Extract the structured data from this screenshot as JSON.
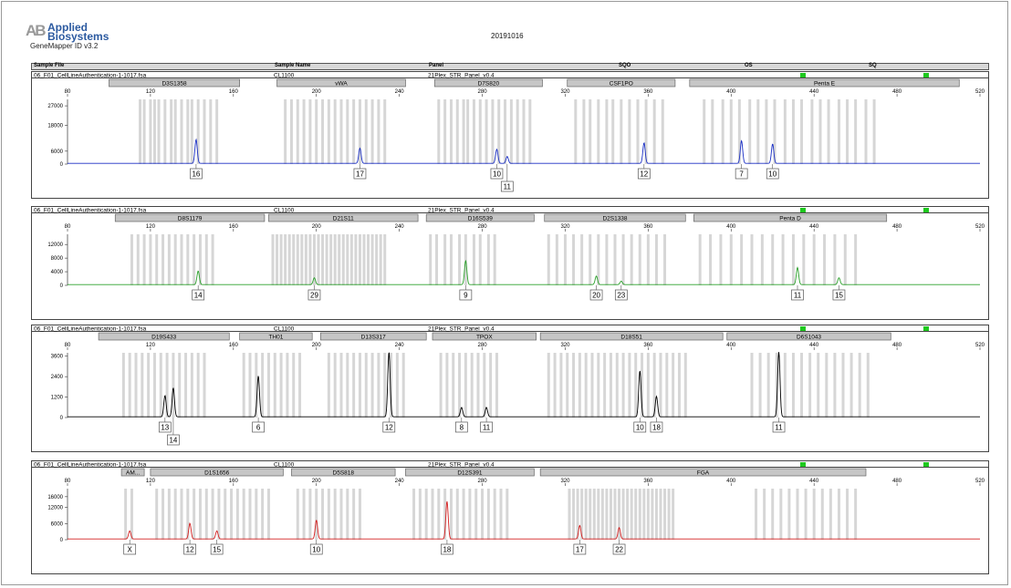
{
  "header": {
    "logo_mark": "AB",
    "brand_line1": "Applied",
    "brand_line2": "Biosystems",
    "software": "GeneMapper ID v3.2",
    "date": "20191016",
    "columns": [
      "Sample File",
      "Sample Name",
      "Panel",
      "SQO",
      "OS",
      "SQ"
    ]
  },
  "colors": {
    "blue": "#1a2fc4",
    "green": "#2aa02a",
    "black": "#000000",
    "red": "#d42020",
    "flag": "#1ec81e"
  },
  "chart_data": [
    {
      "type": "line",
      "title": "06_F01_CellLineAuthentication-1-1017.fsa",
      "sample_name": "CL1100",
      "panel": "21Plex_STR_Panel_v0.4",
      "dye_color": "#1a2fc4",
      "xlim": [
        80,
        520
      ],
      "xticks": [
        80,
        120,
        160,
        200,
        240,
        280,
        320,
        360,
        400,
        440,
        480,
        520
      ],
      "ylim": [
        0,
        30000
      ],
      "yticks": [
        0,
        6000,
        18000,
        27000
      ],
      "markers": [
        {
          "name": "D3S1358",
          "start": 100,
          "end": 163
        },
        {
          "name": "vWA",
          "start": 181,
          "end": 243
        },
        {
          "name": "D7S820",
          "start": 257,
          "end": 309
        },
        {
          "name": "CSF1PO",
          "start": 321,
          "end": 373
        },
        {
          "name": "Penta E",
          "start": 380,
          "end": 510
        }
      ],
      "peaks": [
        {
          "x": 142,
          "h": 11000,
          "label": "16"
        },
        {
          "x": 221,
          "h": 7000,
          "label": "17"
        },
        {
          "x": 287,
          "h": 6500,
          "label": "10"
        },
        {
          "x": 292,
          "h": 3200,
          "label": "11"
        },
        {
          "x": 358,
          "h": 9500,
          "label": "12"
        },
        {
          "x": 405,
          "h": 10500,
          "label": "7"
        },
        {
          "x": 420,
          "h": 9000,
          "label": "10"
        }
      ],
      "alleles": [
        {
          "x": 142,
          "label": "16"
        },
        {
          "x": 221,
          "label": "17"
        },
        {
          "x": 287,
          "label": "10"
        },
        {
          "x": 292,
          "label": "11"
        },
        {
          "x": 358,
          "label": "12"
        },
        {
          "x": 405,
          "label": "7"
        },
        {
          "x": 420,
          "label": "10"
        }
      ],
      "bins": [
        115,
        117,
        120,
        122,
        124,
        127,
        130,
        132,
        135,
        138,
        140,
        143,
        146,
        149,
        152,
        185,
        188,
        191,
        194,
        197,
        200,
        203,
        206,
        209,
        212,
        215,
        218,
        221,
        224,
        227,
        230,
        233,
        259,
        262,
        265,
        268,
        271,
        273,
        276,
        279,
        282,
        285,
        288,
        291,
        294,
        297,
        300,
        303,
        325,
        329,
        332,
        336,
        340,
        343,
        347,
        351,
        355,
        359,
        363,
        367,
        387,
        391,
        396,
        400,
        404,
        409,
        413,
        417,
        421,
        426,
        430,
        434,
        439,
        443,
        447,
        452,
        456,
        460,
        465,
        469
      ]
    },
    {
      "type": "line",
      "title": "06_F01_CellLineAuthentication-1-1017.fsa",
      "sample_name": "CL1100",
      "panel": "21Plex_STR_Panel_v0.4",
      "dye_color": "#2aa02a",
      "xlim": [
        80,
        520
      ],
      "xticks": [
        80,
        120,
        160,
        200,
        240,
        280,
        320,
        360,
        400,
        440,
        480,
        520
      ],
      "ylim": [
        0,
        15000
      ],
      "yticks": [
        0,
        4000,
        8000,
        12000
      ],
      "markers": [
        {
          "name": "D8S1179",
          "start": 103,
          "end": 175
        },
        {
          "name": "D21S11",
          "start": 177,
          "end": 249
        },
        {
          "name": "D16S539",
          "start": 253,
          "end": 305
        },
        {
          "name": "D2S1338",
          "start": 310,
          "end": 378
        },
        {
          "name": "Penta D",
          "start": 382,
          "end": 475
        }
      ],
      "peaks": [
        {
          "x": 143,
          "h": 4000,
          "label": "14"
        },
        {
          "x": 199,
          "h": 2000,
          "label": "29"
        },
        {
          "x": 272,
          "h": 7000,
          "label": "9"
        },
        {
          "x": 335,
          "h": 2500,
          "label": "20"
        },
        {
          "x": 347,
          "h": 1000,
          "label": "23"
        },
        {
          "x": 432,
          "h": 5000,
          "label": "11"
        },
        {
          "x": 452,
          "h": 2000,
          "label": "15"
        }
      ],
      "alleles": [
        {
          "x": 143,
          "label": "14"
        },
        {
          "x": 199,
          "label": "29"
        },
        {
          "x": 272,
          "label": "9"
        },
        {
          "x": 335,
          "label": "20"
        },
        {
          "x": 347,
          "label": "23"
        },
        {
          "x": 432,
          "label": "11"
        },
        {
          "x": 452,
          "label": "15"
        }
      ],
      "bins": [
        111,
        114,
        117,
        120,
        123,
        126,
        129,
        132,
        135,
        138,
        141,
        144,
        147,
        150,
        179,
        181,
        183,
        185,
        187,
        189,
        191,
        193,
        195,
        197,
        199,
        201,
        203,
        205,
        207,
        209,
        211,
        213,
        215,
        217,
        219,
        221,
        223,
        225,
        227,
        229,
        231,
        233,
        255,
        258,
        262,
        265,
        269,
        272,
        276,
        279,
        283,
        286,
        312,
        316,
        320,
        324,
        328,
        332,
        336,
        340,
        344,
        348,
        352,
        356,
        360,
        364,
        368,
        385,
        390,
        395,
        400,
        405,
        410,
        415,
        420,
        425,
        430,
        435,
        440,
        445,
        450,
        455,
        460
      ]
    },
    {
      "type": "line",
      "title": "06_F01_CellLineAuthentication-1-1017.fsa",
      "sample_name": "CL1100",
      "panel": "21Plex_STR_Panel_v0.4",
      "dye_color": "#000000",
      "xlim": [
        80,
        520
      ],
      "xticks": [
        80,
        120,
        160,
        200,
        240,
        280,
        320,
        360,
        400,
        440,
        480,
        520
      ],
      "ylim": [
        0,
        3800
      ],
      "yticks": [
        0,
        1200,
        2400,
        3600
      ],
      "markers": [
        {
          "name": "D19S433",
          "start": 95,
          "end": 158
        },
        {
          "name": "TH01",
          "start": 163,
          "end": 198
        },
        {
          "name": "D13S317",
          "start": 202,
          "end": 253
        },
        {
          "name": "TPOX",
          "start": 256,
          "end": 306
        },
        {
          "name": "D18S51",
          "start": 308,
          "end": 396
        },
        {
          "name": "D6S1043",
          "start": 398,
          "end": 477
        }
      ],
      "peaks": [
        {
          "x": 127,
          "h": 1250,
          "label": "13"
        },
        {
          "x": 131,
          "h": 1700,
          "label": "14"
        },
        {
          "x": 172,
          "h": 2400,
          "label": "6"
        },
        {
          "x": 235,
          "h": 3800,
          "label": "12"
        },
        {
          "x": 270,
          "h": 550,
          "label": "8"
        },
        {
          "x": 282,
          "h": 550,
          "label": "11"
        },
        {
          "x": 356,
          "h": 2700,
          "label": "10"
        },
        {
          "x": 364,
          "h": 1200,
          "label": "18"
        },
        {
          "x": 423,
          "h": 3800,
          "label": "11"
        }
      ],
      "alleles": [
        {
          "x": 127,
          "label": "13"
        },
        {
          "x": 131,
          "label": "14"
        },
        {
          "x": 172,
          "label": "6"
        },
        {
          "x": 235,
          "label": "12"
        },
        {
          "x": 270,
          "label": "8"
        },
        {
          "x": 282,
          "label": "11"
        },
        {
          "x": 356,
          "label": "10"
        },
        {
          "x": 364,
          "label": "18"
        },
        {
          "x": 423,
          "label": "11"
        }
      ],
      "bins": [
        107,
        110,
        113,
        116,
        119,
        122,
        125,
        128,
        131,
        134,
        137,
        140,
        143,
        146,
        165,
        168,
        171,
        174,
        177,
        180,
        183,
        186,
        189,
        192,
        206,
        209,
        212,
        215,
        218,
        221,
        224,
        227,
        230,
        233,
        236,
        239,
        242,
        260,
        263,
        266,
        269,
        272,
        275,
        278,
        281,
        284,
        287,
        312,
        315,
        318,
        321,
        324,
        327,
        330,
        333,
        336,
        339,
        342,
        345,
        348,
        351,
        354,
        357,
        360,
        363,
        366,
        369,
        372,
        375,
        378,
        410,
        414,
        418,
        422,
        426,
        430,
        434,
        438,
        442,
        446,
        450,
        454,
        458,
        462,
        466
      ]
    },
    {
      "type": "line",
      "title": "06_F01_CellLineAuthentication-1-1017.fsa",
      "sample_name": "CL1100",
      "panel": "21Plex_STR_Panel_v0.4",
      "dye_color": "#d42020",
      "xlim": [
        80,
        520
      ],
      "xticks": [
        80,
        120,
        160,
        200,
        240,
        280,
        320,
        360,
        400,
        440,
        480,
        520
      ],
      "ylim": [
        0,
        19000
      ],
      "yticks": [
        0,
        6000,
        12000,
        16000
      ],
      "markers": [
        {
          "name": "AM...",
          "start": 106,
          "end": 117
        },
        {
          "name": "D1S1656",
          "start": 120,
          "end": 184
        },
        {
          "name": "D5S818",
          "start": 188,
          "end": 238
        },
        {
          "name": "D12S391",
          "start": 243,
          "end": 305
        },
        {
          "name": "FGA",
          "start": 308,
          "end": 465
        }
      ],
      "peaks": [
        {
          "x": 110,
          "h": 3000,
          "label": "X"
        },
        {
          "x": 139,
          "h": 5800,
          "label": "12"
        },
        {
          "x": 152,
          "h": 3000,
          "label": "15"
        },
        {
          "x": 200,
          "h": 7000,
          "label": "10"
        },
        {
          "x": 263,
          "h": 14000,
          "label": "18"
        },
        {
          "x": 327,
          "h": 5000,
          "label": "17"
        },
        {
          "x": 346,
          "h": 4200,
          "label": "22"
        }
      ],
      "alleles": [
        {
          "x": 110,
          "label": "X"
        },
        {
          "x": 139,
          "label": "12"
        },
        {
          "x": 152,
          "label": "15"
        },
        {
          "x": 200,
          "label": "10"
        },
        {
          "x": 263,
          "label": "18"
        },
        {
          "x": 327,
          "label": "17"
        },
        {
          "x": 346,
          "label": "22"
        }
      ],
      "bins": [
        108,
        111,
        123,
        126,
        129,
        132,
        135,
        138,
        141,
        144,
        147,
        150,
        153,
        156,
        159,
        162,
        165,
        168,
        171,
        174,
        177,
        191,
        194,
        197,
        200,
        203,
        206,
        209,
        212,
        215,
        218,
        221,
        247,
        250,
        253,
        256,
        259,
        262,
        265,
        268,
        271,
        274,
        277,
        280,
        283,
        286,
        289,
        292,
        322,
        324,
        326,
        328,
        330,
        332,
        334,
        336,
        338,
        340,
        342,
        344,
        346,
        348,
        350,
        352,
        354,
        356,
        358,
        360,
        362,
        364,
        366,
        368,
        370,
        372,
        412,
        416,
        420,
        424,
        428,
        432,
        436,
        440,
        444,
        448,
        452,
        456,
        460
      ]
    }
  ]
}
